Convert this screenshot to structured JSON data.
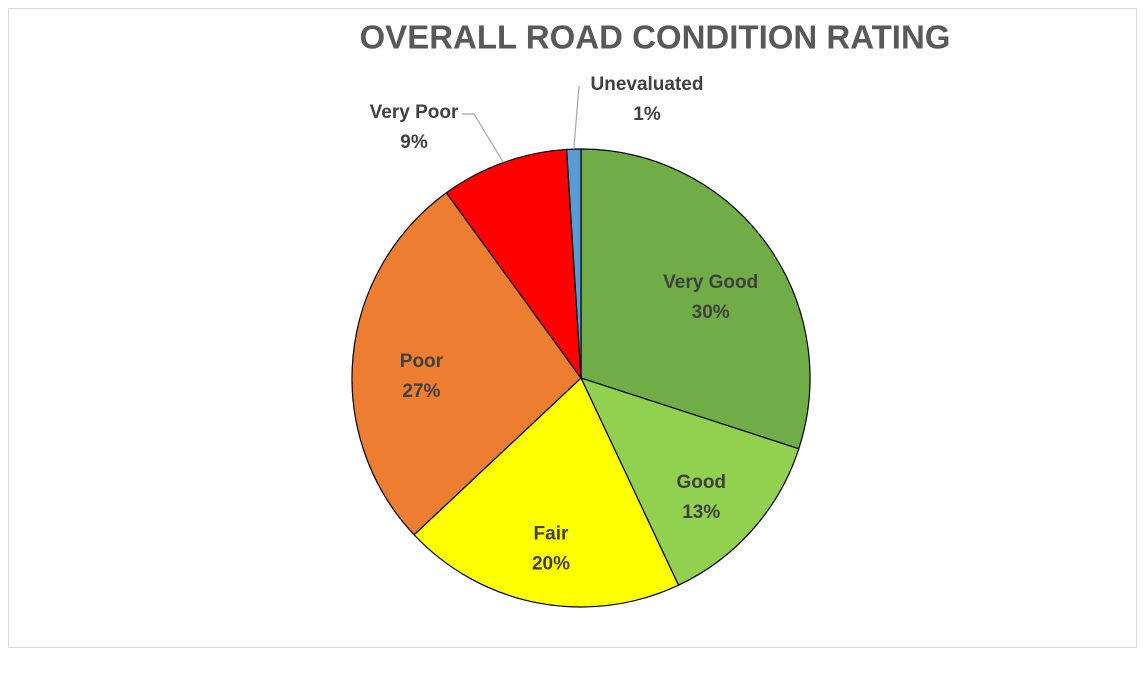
{
  "chart_data": {
    "type": "pie",
    "title": "OVERALL ROAD CONDITION RATING",
    "categories": [
      "Very Good",
      "Good",
      "Fair",
      "Poor",
      "Very Poor",
      "Unevaluated"
    ],
    "values": [
      30,
      13,
      20,
      27,
      9,
      1
    ],
    "value_labels": [
      "30%",
      "13%",
      "20%",
      "27%",
      "9%",
      "1%"
    ],
    "colors": [
      "#70ad47",
      "#92d050",
      "#ffff00",
      "#ed7d31",
      "#ff0000",
      "#5b9bd5"
    ]
  }
}
